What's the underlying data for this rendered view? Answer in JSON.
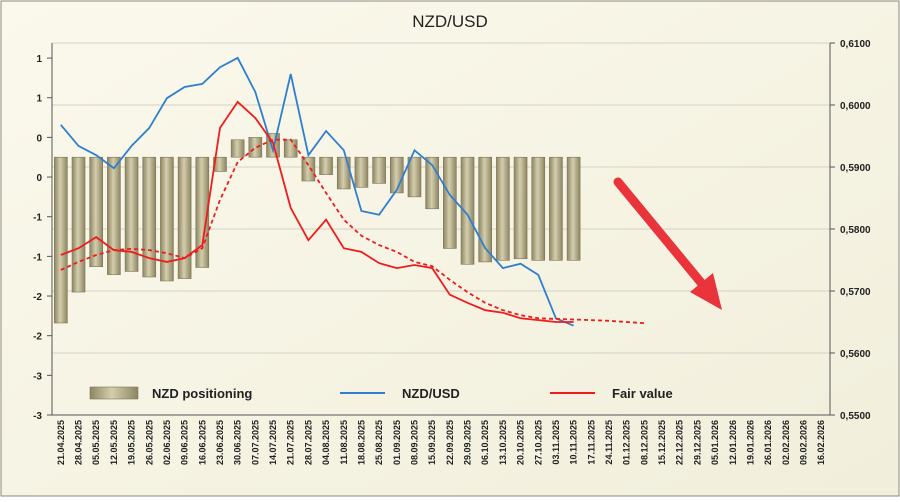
{
  "chart_data": {
    "type": "bar-line",
    "title": "NZD/USD",
    "categories": [
      "21.04.2025",
      "28.04.2025",
      "05.05.2025",
      "12.05.2025",
      "19.05.2025",
      "26.05.2025",
      "02.06.2025",
      "09.06.2025",
      "16.06.2025",
      "23.06.2025",
      "30.06.2025",
      "07.07.2025",
      "14.07.2025",
      "21.07.2025",
      "28.07.2025",
      "04.08.2025",
      "11.08.2025",
      "18.08.2025",
      "25.08.2025",
      "01.09.2025",
      "08.09.2025",
      "15.09.2025",
      "22.09.2025",
      "29.09.2025",
      "06.10.2025",
      "13.10.2025",
      "20.10.2025",
      "27.10.2025",
      "03.11.2025",
      "10.11.2025",
      "17.11.2025",
      "24.11.2025",
      "01.12.2025",
      "08.12.2025",
      "15.12.2025",
      "22.12.2025",
      "29.12.2025",
      "05.01.2026",
      "12.01.2026",
      "19.01.2026",
      "26.01.2026",
      "02.02.2026",
      "09.02.2026",
      "16.02.2026"
    ],
    "series": [
      {
        "name": "NZD positioning",
        "kind": "bar",
        "axis": "y",
        "color": "#b8b08a",
        "values": [
          -2.09,
          -1.7,
          -1.38,
          -1.48,
          -1.44,
          -1.51,
          -1.56,
          -1.53,
          -1.39,
          -0.18,
          0.22,
          0.25,
          0.3,
          0.22,
          -0.3,
          -0.22,
          -0.4,
          -0.38,
          -0.33,
          -0.45,
          -0.5,
          -0.65,
          -1.15,
          -1.35,
          -1.32,
          -1.3,
          -1.28,
          -1.3,
          -1.3,
          -1.3,
          null,
          null,
          null,
          null,
          null,
          null,
          null,
          null,
          null,
          null,
          null,
          null,
          null,
          null
        ]
      },
      {
        "name": "NZD/USD",
        "kind": "line",
        "axis": "y2",
        "color": "#2f7fd0",
        "values": [
          0.5968,
          0.5934,
          0.5919,
          0.5898,
          0.5934,
          0.5963,
          0.6011,
          0.6029,
          0.6034,
          0.6061,
          0.6076,
          0.6021,
          0.5927,
          0.605,
          0.5919,
          0.5958,
          0.5927,
          0.5829,
          0.5823,
          0.5863,
          0.5927,
          0.5903,
          0.5855,
          0.5823,
          0.5769,
          0.5737,
          0.5744,
          0.5726,
          0.5656,
          0.5644,
          null,
          null,
          null,
          null,
          null,
          null,
          null,
          null,
          null,
          null,
          null,
          null,
          null,
          null
        ]
      },
      {
        "name": "Fair value",
        "kind": "line",
        "axis": "y2",
        "color": "#ee1c1c",
        "values": [
          0.5758,
          0.5769,
          0.5787,
          0.5766,
          0.5763,
          0.5753,
          0.5747,
          0.5753,
          0.5774,
          0.5963,
          0.6005,
          0.5979,
          0.5939,
          0.5834,
          0.5782,
          0.5815,
          0.5769,
          0.5763,
          0.5745,
          0.5737,
          0.5742,
          0.5737,
          0.5694,
          0.5681,
          0.5669,
          0.5665,
          0.5656,
          0.5653,
          0.565,
          0.565,
          null,
          null,
          null,
          null,
          null,
          null,
          null,
          null,
          null,
          null,
          null,
          null,
          null,
          null
        ]
      },
      {
        "kind": "line",
        "axis": "y2",
        "color": "#ee1c1c",
        "dash": true,
        "values": [
          0.5734,
          0.5747,
          0.5758,
          0.5766,
          0.5768,
          0.5766,
          0.5761,
          0.5753,
          0.5769,
          0.5847,
          0.5908,
          0.5931,
          0.5944,
          0.5944,
          0.5903,
          0.5858,
          0.5815,
          0.5789,
          0.5774,
          0.5763,
          0.5747,
          0.574,
          0.5718,
          0.5698,
          0.5681,
          0.5669,
          0.5661,
          0.5656,
          0.5655,
          0.5654,
          0.5653,
          0.5652,
          0.565,
          0.5648,
          null,
          null,
          null,
          null,
          null,
          null,
          null,
          null,
          null,
          null
        ]
      }
    ],
    "ylim": [
      -3.25,
      1.44
    ],
    "yticks": [
      {
        "value": -3.25,
        "label": "-3"
      },
      {
        "value": -2.75,
        "label": "-3"
      },
      {
        "value": -2.25,
        "label": "-2"
      },
      {
        "value": -1.75,
        "label": "-2"
      },
      {
        "value": -1.25,
        "label": "-1"
      },
      {
        "value": -0.75,
        "label": "-1"
      },
      {
        "value": -0.25,
        "label": "0"
      },
      {
        "value": 0.25,
        "label": "0"
      },
      {
        "value": 0.75,
        "label": "1"
      },
      {
        "value": 1.25,
        "label": "1"
      }
    ],
    "y2lim": [
      0.55,
      0.61
    ],
    "y2ticks": [
      {
        "value": 0.55,
        "label": "0,5500"
      },
      {
        "value": 0.56,
        "label": "0,5600"
      },
      {
        "value": 0.57,
        "label": "0,5700"
      },
      {
        "value": 0.58,
        "label": "0,5800"
      },
      {
        "value": 0.59,
        "label": "0,5900"
      },
      {
        "value": 0.6,
        "label": "0,6000"
      },
      {
        "value": 0.61,
        "label": "0,6100"
      }
    ],
    "grid": true
  }
}
